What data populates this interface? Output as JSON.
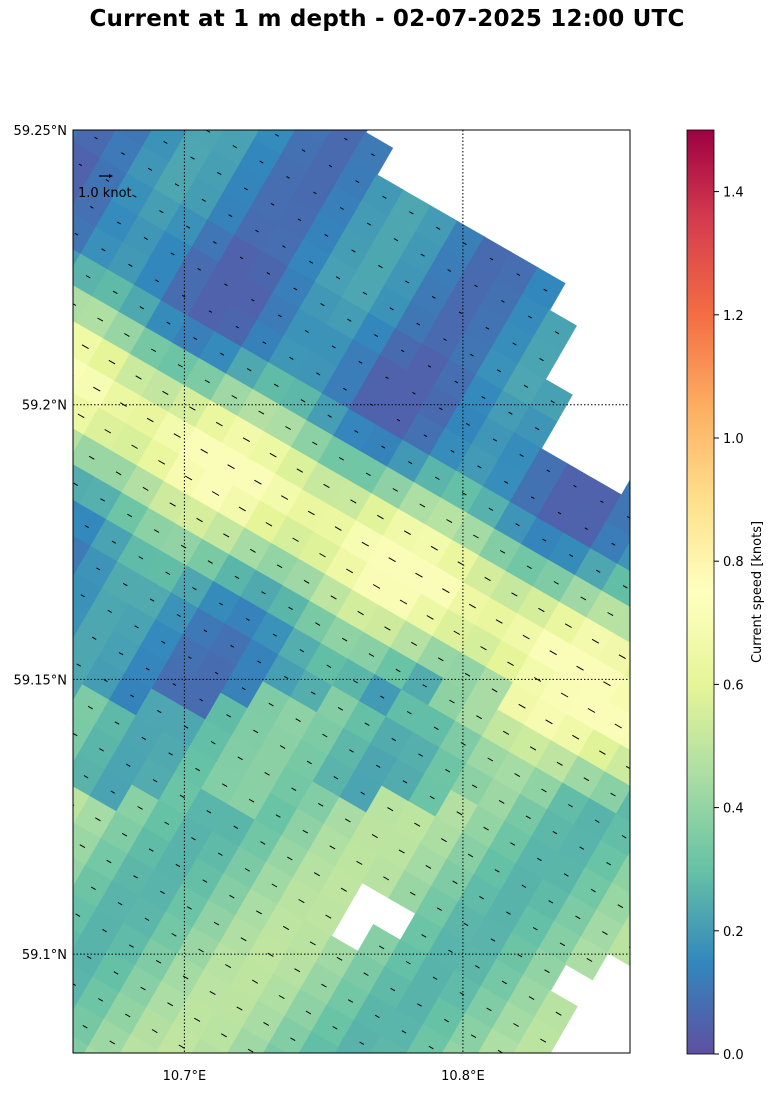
{
  "title": "Current at 1 m depth - 02-07-2025 12:00 UTC",
  "map": {
    "lon_range": [
      10.66,
      10.86
    ],
    "lat_range": [
      59.082,
      59.25
    ],
    "lat_ticks": [
      {
        "value": 59.25,
        "label": "59.25°N"
      },
      {
        "value": 59.2,
        "label": "59.2°N"
      },
      {
        "value": 59.15,
        "label": "59.15°N"
      },
      {
        "value": 59.1,
        "label": "59.1°N"
      }
    ],
    "lon_ticks": [
      {
        "value": 10.7,
        "label": "10.7°E"
      },
      {
        "value": 10.8,
        "label": "10.8°E"
      }
    ],
    "gridlines": "dotted",
    "reference_arrow_label": "1.0 knot",
    "reference_arrow_speed": 1.0,
    "land_color": "#ffffff"
  },
  "colorbar": {
    "label": "Current speed [knots]",
    "range": [
      0,
      1.5
    ],
    "ticks": [
      {
        "value": 0,
        "label": "0.0"
      },
      {
        "value": 0.2,
        "label": "0.2"
      },
      {
        "value": 0.4,
        "label": "0.4"
      },
      {
        "value": 0.6,
        "label": "0.6"
      },
      {
        "value": 0.8,
        "label": "0.8"
      },
      {
        "value": 1.0,
        "label": "1.0"
      },
      {
        "value": 1.2,
        "label": "1.2"
      },
      {
        "value": 1.4,
        "label": "1.4"
      }
    ],
    "colormap": "Spectral_r",
    "colormap_stops": [
      "#5e4fa2",
      "#3288bd",
      "#66c2a5",
      "#abdda4",
      "#e6f598",
      "#ffffbf",
      "#fee08b",
      "#fdae61",
      "#f46d43",
      "#d53e4f",
      "#9e0142"
    ]
  }
}
